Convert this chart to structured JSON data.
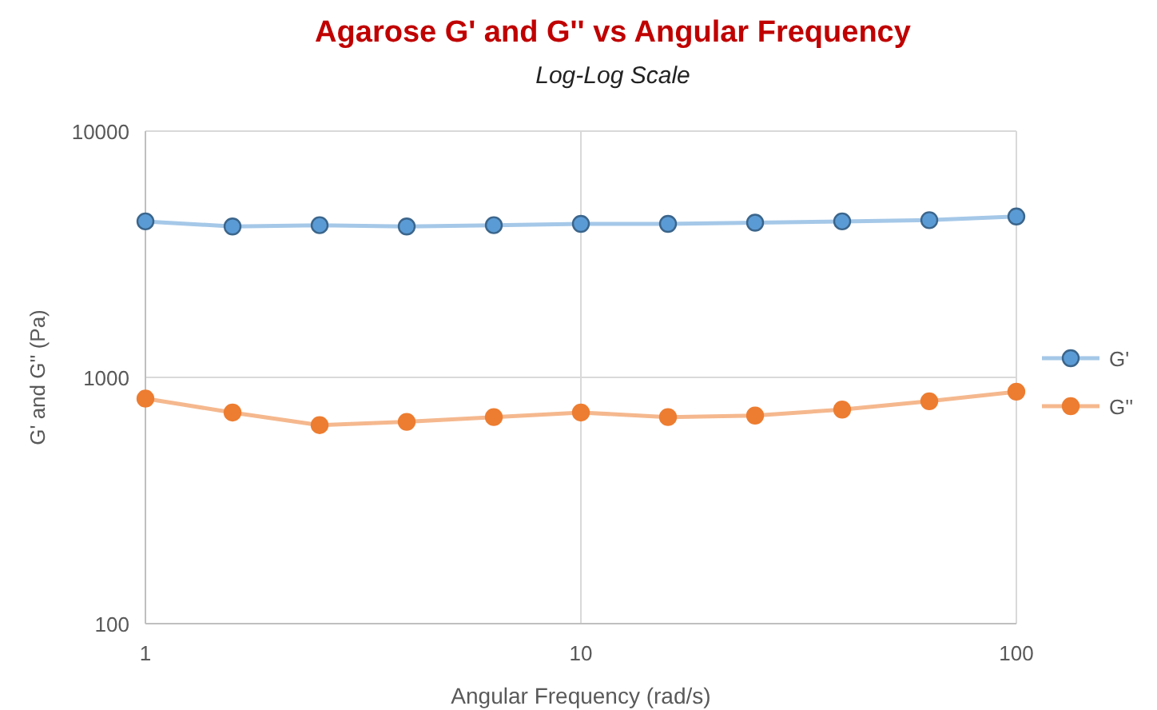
{
  "chart_data": {
    "type": "line",
    "title": "Agarose G' and G'' vs Angular Frequency",
    "subtitle": "Log-Log Scale",
    "xlabel": "Angular Frequency (rad/s)",
    "ylabel": "G' and G'' (Pa)",
    "x": [
      1,
      1.585,
      2.512,
      3.981,
      6.31,
      10,
      15.85,
      25.12,
      39.81,
      63.1,
      100
    ],
    "series": [
      {
        "name": "G'",
        "color": "#5b9bd5",
        "values": [
          4300,
          4100,
          4150,
          4100,
          4150,
          4200,
          4200,
          4250,
          4300,
          4350,
          4500
        ]
      },
      {
        "name": "G''",
        "color": "#ed7d31",
        "values": [
          820,
          720,
          640,
          660,
          690,
          720,
          690,
          700,
          740,
          800,
          875
        ]
      }
    ],
    "log": "xy",
    "xlim": [
      1,
      100
    ],
    "xticks": [
      1,
      10,
      100
    ],
    "ylim": [
      100,
      10000
    ],
    "yticks": [
      100,
      1000,
      10000
    ],
    "grid": true,
    "legend": "right",
    "marker": "circle",
    "line_style": "solid"
  }
}
